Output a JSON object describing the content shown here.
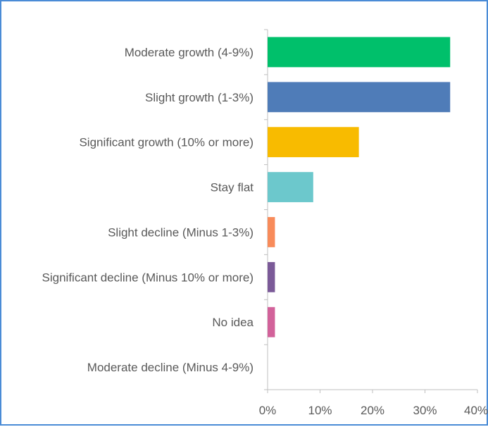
{
  "chart_data": {
    "type": "bar",
    "orientation": "horizontal",
    "title": "",
    "xlabel": "",
    "ylabel": "",
    "xlim": [
      0,
      40
    ],
    "x_ticks": [
      "0%",
      "10%",
      "20%",
      "30%",
      "40%"
    ],
    "grid": false,
    "legend": "none",
    "categories": [
      "Moderate growth (4-9%)",
      "Slight growth (1-3%)",
      "Significant growth (10% or more)",
      "Stay flat",
      "Slight decline (Minus 1-3%)",
      "Significant decline (Minus 10% or more)",
      "No idea",
      "Moderate decline (Minus 4-9%)"
    ],
    "values": [
      34.8,
      34.8,
      17.4,
      8.7,
      1.4,
      1.4,
      1.4,
      0
    ],
    "colors": [
      "#00c06b",
      "#4f7cb8",
      "#f8bb00",
      "#6cc8cc",
      "#f88b5a",
      "#7b5a98",
      "#d2629a",
      "#bfbfbf"
    ]
  }
}
